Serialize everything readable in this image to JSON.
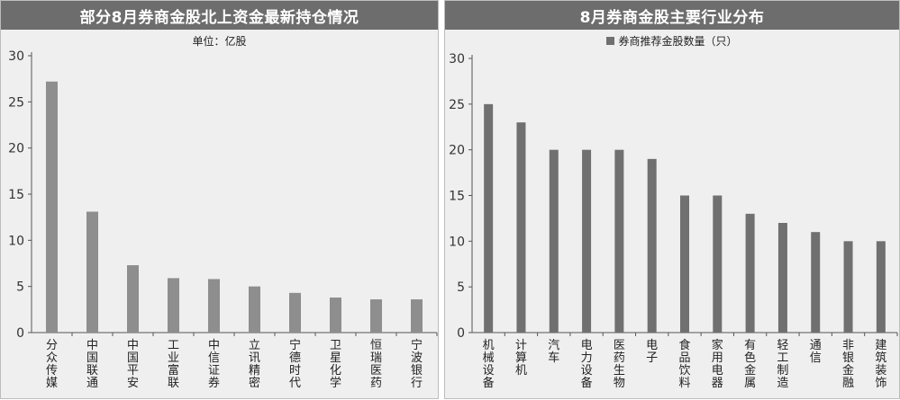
{
  "chart_data": [
    {
      "type": "bar",
      "title": "部分8月券商金股北上资金最新持仓情况",
      "subtitle": "单位：亿股",
      "categories": [
        "分众传媒",
        "中国联通",
        "中国平安",
        "工业富联",
        "中信证券",
        "立讯精密",
        "宁德时代",
        "卫星化学",
        "恒瑞医药",
        "宁波银行"
      ],
      "values": [
        27.2,
        13.1,
        7.3,
        5.9,
        5.8,
        5.0,
        4.3,
        3.8,
        3.6,
        3.6
      ],
      "ylim": [
        0,
        30
      ],
      "yticks": [
        0,
        5,
        10,
        15,
        20,
        25,
        30
      ],
      "grid": false,
      "bar_color": "#8e8e8e"
    },
    {
      "type": "bar",
      "title": "8月券商金股主要行业分布",
      "legend": "券商推荐金股数量（只）",
      "legend_position": "top-center",
      "categories": [
        "机械设备",
        "计算机",
        "汽车",
        "电力设备",
        "医药生物",
        "电子",
        "食品饮料",
        "家用电器",
        "有色金属",
        "轻工制造",
        "通信",
        "非银金融",
        "建筑装饰"
      ],
      "values": [
        25,
        23,
        20,
        20,
        20,
        19,
        15,
        15,
        13,
        12,
        11,
        10,
        10
      ],
      "ylim": [
        0,
        30
      ],
      "yticks": [
        0,
        5,
        10,
        15,
        20,
        25,
        30
      ],
      "grid": false,
      "bar_color": "#707070"
    }
  ]
}
